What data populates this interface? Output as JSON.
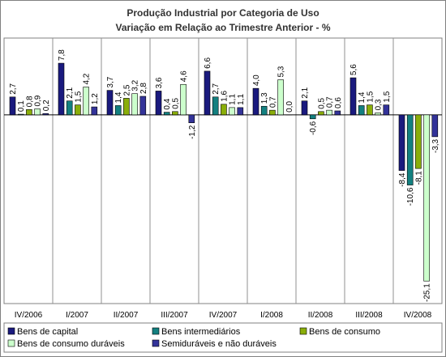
{
  "chart_data": {
    "type": "bar",
    "title": [
      "Produção Industrial por Categoria de Uso",
      "Variação em Relação ao Trimestre Anterior - %"
    ],
    "categories": [
      "IV/2006",
      "I/2007",
      "II/2007",
      "III/2007",
      "IV/2007",
      "I/2008",
      "II/2008",
      "III/2008",
      "IV/2008"
    ],
    "series": [
      {
        "name": "Bens de capital",
        "color": "#1a1a7e",
        "values": [
          2.7,
          7.8,
          3.7,
          3.6,
          6.6,
          4.0,
          2.1,
          5.6,
          -8.4
        ]
      },
      {
        "name": "Bens intermediários",
        "color": "#138080",
        "values": [
          0.1,
          2.1,
          1.4,
          0.4,
          2.7,
          1.3,
          -0.6,
          1.4,
          -10.6
        ]
      },
      {
        "name": "Bens de consumo",
        "color": "#8aae0a",
        "values": [
          0.8,
          1.5,
          2.5,
          0.5,
          1.6,
          0.7,
          0.5,
          1.5,
          -8.1
        ]
      },
      {
        "name": "Bens de consumo duráveis",
        "color": "#ccffcc",
        "values": [
          0.9,
          4.2,
          3.2,
          4.6,
          1.1,
          5.3,
          0.7,
          0.3,
          -25.1
        ]
      },
      {
        "name": "Semiduráveis e não duráveis",
        "color": "#333399",
        "values": [
          0.2,
          1.2,
          2.8,
          -1.2,
          1.1,
          0.0,
          0.6,
          1.5,
          -3.3
        ]
      }
    ],
    "labels": [
      [
        "2,7",
        "7,8",
        "3,7",
        "3,6",
        "6,6",
        "4,0",
        "2,1",
        "5,6",
        "-8,4"
      ],
      [
        "0,1",
        "2,1",
        "1,4",
        "0,4",
        "2,7",
        "1,3",
        "-0,6",
        "1,4",
        "-10,6"
      ],
      [
        "0,8",
        "1,5",
        "2,5",
        "0,5",
        "1,6",
        "0,7",
        "0,5",
        "1,5",
        "-8,1"
      ],
      [
        "0,9",
        "4,2",
        "3,2",
        "4,6",
        "1,1",
        "5,3",
        "0,7",
        "0,3",
        "-25,1"
      ],
      [
        "0,2",
        "1,2",
        "2,8",
        "-1,2",
        "1,1",
        "0,0",
        "0,6",
        "1,5",
        "-3,3"
      ]
    ],
    "ylim": [
      -28.5,
      11.6
    ],
    "grid": "vertical separators",
    "legend_placement": "bottom"
  }
}
